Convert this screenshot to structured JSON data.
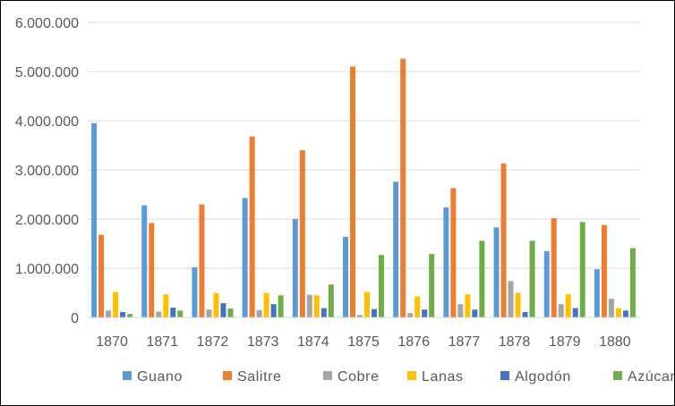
{
  "chart_data": {
    "type": "bar",
    "title": "",
    "xlabel": "",
    "ylabel": "",
    "ylim": [
      0,
      6000000
    ],
    "y_ticks": [
      0,
      1000000,
      2000000,
      3000000,
      4000000,
      5000000,
      6000000
    ],
    "y_tick_labels": [
      "0",
      "1.000.000",
      "2.000.000",
      "3.000.000",
      "4.000.000",
      "5.000.000",
      "6.000.000"
    ],
    "grid": true,
    "legend_position": "bottom",
    "categories": [
      "1870",
      "1871",
      "1872",
      "1873",
      "1874",
      "1875",
      "1876",
      "1877",
      "1878",
      "1879",
      "1880"
    ],
    "series": [
      {
        "name": "Guano",
        "color": "#5B9BD5",
        "values": [
          3950000,
          2280000,
          1020000,
          2430000,
          2000000,
          1640000,
          2760000,
          2240000,
          1830000,
          1350000,
          980000
        ]
      },
      {
        "name": "Salitre",
        "color": "#ED7D31",
        "values": [
          1680000,
          1920000,
          2300000,
          3680000,
          3400000,
          5100000,
          5260000,
          2630000,
          3130000,
          2020000,
          1880000
        ]
      },
      {
        "name": "Cobre",
        "color": "#A5A5A5",
        "values": [
          140000,
          120000,
          160000,
          150000,
          460000,
          50000,
          90000,
          270000,
          740000,
          270000,
          380000
        ]
      },
      {
        "name": "Lanas",
        "color": "#FFC000",
        "values": [
          520000,
          470000,
          500000,
          500000,
          450000,
          520000,
          430000,
          470000,
          500000,
          470000,
          190000
        ]
      },
      {
        "name": "Algodón",
        "color": "#4472C4",
        "values": [
          110000,
          200000,
          290000,
          270000,
          190000,
          170000,
          160000,
          160000,
          110000,
          190000,
          140000
        ]
      },
      {
        "name": "Azúcar",
        "color": "#70AD47",
        "values": [
          70000,
          140000,
          180000,
          450000,
          670000,
          1270000,
          1290000,
          1560000,
          1560000,
          1940000,
          1410000
        ]
      }
    ]
  }
}
